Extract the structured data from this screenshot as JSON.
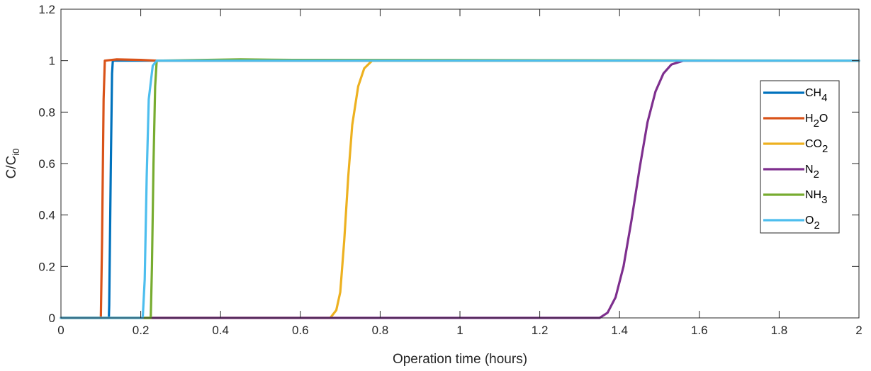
{
  "chart_data": {
    "type": "line",
    "xlabel": "Operation time (hours)",
    "ylabel": {
      "base": "C/C",
      "sub": "i0"
    },
    "xlim": [
      0,
      2
    ],
    "ylim": [
      0,
      1.2
    ],
    "xticks": [
      "0",
      "0.2",
      "0.4",
      "0.6",
      "0.8",
      "1",
      "1.2",
      "1.4",
      "1.6",
      "1.8",
      "2"
    ],
    "yticks": [
      "0",
      "0.2",
      "0.4",
      "0.6",
      "0.8",
      "1",
      "1.2"
    ],
    "grid": false,
    "legend_position": "right",
    "series": [
      {
        "name": "CH4",
        "label": {
          "base": "CH",
          "sub": "4",
          "post": ""
        },
        "color": "#0072BD",
        "points": [
          [
            0,
            0
          ],
          [
            0.12,
            0
          ],
          [
            0.121,
            0.05
          ],
          [
            0.125,
            0.6
          ],
          [
            0.128,
            0.95
          ],
          [
            0.13,
            1
          ],
          [
            0.2,
            1
          ],
          [
            2,
            1
          ]
        ]
      },
      {
        "name": "H2O",
        "label": {
          "base": "H",
          "sub": "2",
          "post": "O"
        },
        "color": "#D95319",
        "points": [
          [
            0,
            0
          ],
          [
            0.1,
            0
          ],
          [
            0.103,
            0.3
          ],
          [
            0.107,
            0.85
          ],
          [
            0.11,
            1
          ],
          [
            0.14,
            1.005
          ],
          [
            0.2,
            1.003
          ],
          [
            0.24,
            1
          ],
          [
            2,
            1
          ]
        ]
      },
      {
        "name": "CO2",
        "label": {
          "base": "CO",
          "sub": "2",
          "post": ""
        },
        "color": "#EDB120",
        "points": [
          [
            0,
            0
          ],
          [
            0.675,
            0
          ],
          [
            0.69,
            0.03
          ],
          [
            0.7,
            0.1
          ],
          [
            0.71,
            0.3
          ],
          [
            0.72,
            0.55
          ],
          [
            0.73,
            0.75
          ],
          [
            0.745,
            0.9
          ],
          [
            0.76,
            0.97
          ],
          [
            0.78,
            1
          ],
          [
            2,
            1
          ]
        ]
      },
      {
        "name": "N2",
        "label": {
          "base": "N",
          "sub": "2",
          "post": ""
        },
        "color": "#7E2F8E",
        "points": [
          [
            0,
            0
          ],
          [
            0.22,
            0
          ],
          [
            1.35,
            0
          ],
          [
            1.37,
            0.02
          ],
          [
            1.39,
            0.08
          ],
          [
            1.41,
            0.2
          ],
          [
            1.43,
            0.38
          ],
          [
            1.45,
            0.58
          ],
          [
            1.47,
            0.76
          ],
          [
            1.49,
            0.88
          ],
          [
            1.51,
            0.95
          ],
          [
            1.53,
            0.985
          ],
          [
            1.56,
            1
          ],
          [
            2,
            1
          ]
        ]
      },
      {
        "name": "NH3",
        "label": {
          "base": "NH",
          "sub": "3",
          "post": ""
        },
        "color": "#77AC30",
        "points": [
          [
            0,
            0
          ],
          [
            0.225,
            0
          ],
          [
            0.228,
            0.2
          ],
          [
            0.232,
            0.6
          ],
          [
            0.236,
            0.9
          ],
          [
            0.24,
            1
          ],
          [
            0.45,
            1.005
          ],
          [
            0.58,
            1.003
          ],
          [
            2,
            1
          ]
        ]
      },
      {
        "name": "O2",
        "label": {
          "base": "O",
          "sub": "2",
          "post": ""
        },
        "color": "#4DBEEE",
        "points": [
          [
            0,
            0
          ],
          [
            0.205,
            0
          ],
          [
            0.21,
            0.15
          ],
          [
            0.215,
            0.55
          ],
          [
            0.22,
            0.85
          ],
          [
            0.23,
            0.98
          ],
          [
            0.24,
            1
          ],
          [
            2,
            1
          ]
        ]
      }
    ]
  }
}
